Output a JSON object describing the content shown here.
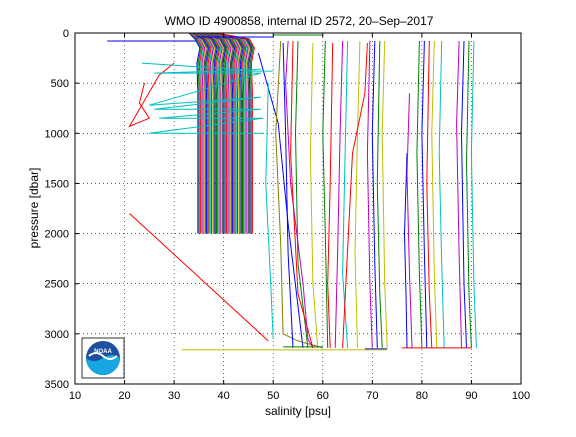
{
  "chart_data": {
    "type": "line",
    "title": "WMO ID 4900858, internal ID 2572, 20–Sep–2017",
    "xlabel": "salinity [psu]",
    "ylabel": "pressure [dbar]",
    "xlim": [
      10,
      100
    ],
    "ylim": [
      0,
      3500
    ],
    "y_reversed": true,
    "grid": true,
    "grid_style": "dotted",
    "x_ticks": [
      10,
      20,
      30,
      40,
      50,
      60,
      70,
      80,
      90,
      100
    ],
    "y_ticks": [
      0,
      500,
      1000,
      1500,
      2000,
      2500,
      3000,
      3500
    ],
    "x_tick_labels": [
      "10",
      "20",
      "30",
      "40",
      "50",
      "60",
      "70",
      "80",
      "90",
      "100"
    ],
    "y_tick_labels": [
      "0",
      "500",
      "1000",
      "1500",
      "2000",
      "2500",
      "3000",
      "3500"
    ],
    "logo": {
      "text": "NOAA",
      "placement": "bottom-left"
    },
    "palette": [
      "#0000ff",
      "#008000",
      "#ff0000",
      "#00bfbf",
      "#bf00bf",
      "#bfbf00",
      "#404040"
    ],
    "profile_band": {
      "first_offset": 34.8,
      "last_offset": 45.8,
      "count": 45,
      "shallow_start": 33.0,
      "bottom": 2000
    },
    "series": [
      {
        "color": "#0000ff",
        "x": [
          16.5,
          30,
          34.5
        ],
        "y": [
          80,
          80,
          80
        ]
      },
      {
        "color": "#ff0000",
        "x": [
          24,
          23,
          25,
          21,
          27,
          30
        ],
        "y": [
          500,
          700,
          850,
          930,
          420,
          300
        ]
      },
      {
        "color": "#00bfbf",
        "x": [
          23.5,
          45,
          47.5,
          45,
          26,
          47.5,
          25,
          47.5,
          26,
          47.5,
          27,
          48,
          25,
          48
        ],
        "y": [
          300,
          370,
          360,
          370,
          400,
          400,
          720,
          640,
          760,
          760,
          850,
          850,
          1000,
          1000
        ]
      },
      {
        "color": "#ff0000",
        "x": [
          21,
          49
        ],
        "y": [
          1800,
          3070
        ]
      },
      {
        "color": "#0000ff",
        "x": [
          47,
          51,
          53,
          56
        ],
        "y": [
          200,
          900,
          1900,
          3140
        ]
      },
      {
        "color": "#808000",
        "x": [
          51.5,
          50.5,
          51.5,
          52,
          55,
          60
        ],
        "y": [
          80,
          1000,
          2100,
          3000,
          3070,
          3140
        ]
      },
      {
        "color": "#bf00bf",
        "x": [
          53,
          52.5,
          53.5,
          56,
          57,
          58
        ],
        "y": [
          80,
          500,
          1500,
          2500,
          3050,
          3140
        ]
      },
      {
        "color": "#00bfbf",
        "x": [
          49,
          48.5,
          49.5,
          50
        ],
        "y": [
          500,
          1500,
          2500,
          3050
        ]
      },
      {
        "color": "#008000",
        "x": [
          55,
          54.5,
          55,
          57
        ],
        "y": [
          80,
          1000,
          2300,
          3140
        ]
      },
      {
        "color": "#ff0000",
        "x": [
          54,
          53.5,
          55,
          58
        ],
        "y": [
          80,
          1200,
          2600,
          3140
        ]
      },
      {
        "color": "#bfbf00",
        "x": [
          58,
          57.5,
          58,
          59
        ],
        "y": [
          100,
          1200,
          2500,
          3140
        ]
      },
      {
        "color": "#0000ff",
        "x": [
          52,
          52.5,
          53,
          54
        ],
        "y": [
          100,
          1000,
          2200,
          3140
        ]
      },
      {
        "color": "#008000",
        "x": [
          60.5,
          60,
          60.5,
          61
        ],
        "y": [
          80,
          1000,
          2000,
          3140
        ]
      },
      {
        "color": "#ff0000",
        "x": [
          62,
          61.5,
          61,
          61.5
        ],
        "y": [
          100,
          1500,
          2500,
          3140
        ]
      },
      {
        "color": "#bf00bf",
        "x": [
          64,
          63.5,
          63,
          62.5
        ],
        "y": [
          80,
          1000,
          2200,
          3140
        ]
      },
      {
        "color": "#00bfbf",
        "x": [
          65,
          64.5,
          64,
          65
        ],
        "y": [
          80,
          1200,
          2400,
          3140
        ]
      },
      {
        "color": "#bfbf00",
        "x": [
          67.5,
          67,
          66.5,
          67
        ],
        "y": [
          80,
          1000,
          2200,
          3140
        ]
      },
      {
        "color": "#ff0000",
        "x": [
          69,
          68.5,
          66,
          64
        ],
        "y": [
          100,
          600,
          1200,
          3140
        ]
      },
      {
        "color": "#bf00bf",
        "x": [
          69.5,
          69,
          69.5,
          70
        ],
        "y": [
          80,
          1200,
          2500,
          3140
        ]
      },
      {
        "color": "#0000ff",
        "x": [
          70.5,
          70,
          70.5,
          71
        ],
        "y": [
          80,
          1000,
          2300,
          3140
        ]
      },
      {
        "color": "#008000",
        "x": [
          71.5,
          71,
          71.5,
          72
        ],
        "y": [
          80,
          1500,
          2600,
          3140
        ]
      },
      {
        "color": "#bfbf00",
        "x": [
          72.5,
          72,
          72.5,
          73
        ],
        "y": [
          80,
          1000,
          2500,
          3140
        ]
      },
      {
        "color": "#0000ff",
        "x": [
          77,
          76.5,
          76.8,
          77
        ],
        "y": [
          1200,
          2000,
          2600,
          3140
        ]
      },
      {
        "color": "#bf00bf",
        "x": [
          77.5,
          77,
          77.5,
          78
        ],
        "y": [
          600,
          1400,
          2400,
          3140
        ]
      },
      {
        "color": "#008000",
        "x": [
          79.5,
          79,
          79.5,
          80
        ],
        "y": [
          80,
          1200,
          2400,
          3140
        ]
      },
      {
        "color": "#0000ff",
        "x": [
          80.5,
          80,
          80.5,
          81
        ],
        "y": [
          80,
          1000,
          2200,
          3140
        ]
      },
      {
        "color": "#ff0000",
        "x": [
          81.5,
          81,
          81.5,
          82
        ],
        "y": [
          80,
          1500,
          2600,
          3140
        ]
      },
      {
        "color": "#bfbf00",
        "x": [
          82.5,
          82,
          82.5,
          83
        ],
        "y": [
          80,
          1000,
          2400,
          3140
        ]
      },
      {
        "color": "#00bfbf",
        "x": [
          84,
          83.5,
          84,
          84.5
        ],
        "y": [
          80,
          1200,
          2300,
          3140
        ]
      },
      {
        "color": "#0000ff",
        "x": [
          88.5,
          88,
          88.5,
          89
        ],
        "y": [
          80,
          1000,
          2500,
          3140
        ]
      },
      {
        "color": "#008000",
        "x": [
          89.5,
          89,
          89.5,
          90
        ],
        "y": [
          80,
          1300,
          2600,
          3140
        ]
      },
      {
        "color": "#bf00bf",
        "x": [
          87.5,
          87,
          87.5,
          88
        ],
        "y": [
          80,
          900,
          2200,
          3140
        ]
      },
      {
        "color": "#00bfbf",
        "x": [
          90.5,
          90,
          90.5,
          91
        ],
        "y": [
          80,
          1200,
          2500,
          3140
        ]
      },
      {
        "color": "#0000ff",
        "x": [
          68.5,
          73
        ],
        "y": [
          3150,
          3150
        ]
      },
      {
        "color": "#008000",
        "x": [
          52,
          60
        ],
        "y": [
          3130,
          3130
        ]
      },
      {
        "color": "#bfbf00",
        "x": [
          31.5,
          73
        ],
        "y": [
          3160,
          3160
        ]
      },
      {
        "color": "#ff0000",
        "x": [
          76,
          90
        ],
        "y": [
          3140,
          3140
        ]
      },
      {
        "color": "#0000ff",
        "x": [
          34.5,
          50
        ],
        "y": [
          40,
          40
        ]
      },
      {
        "color": "#008000",
        "x": [
          50,
          60
        ],
        "y": [
          20,
          20
        ]
      },
      {
        "color": "#00bfbf",
        "x": [
          44,
          50
        ],
        "y": [
          380,
          380
        ]
      }
    ]
  }
}
